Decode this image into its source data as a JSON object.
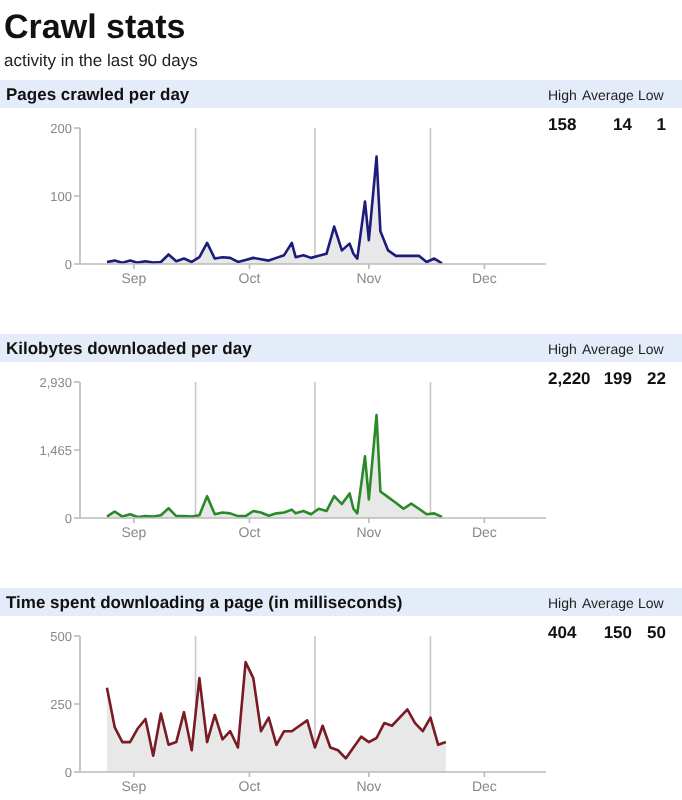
{
  "chart_data": [
    {
      "type": "other",
      "title": "Crawl stats",
      "subtitle": "activity in the last 90 days"
    },
    {
      "type": "area",
      "title": "Pages crawled per day",
      "annotations": [
        "High",
        "Average",
        "Low",
        "158",
        "14",
        "1"
      ],
      "xlim": [
        "--09-01",
        "--12-31"
      ],
      "xticks": [
        {
          "value": "--09-15",
          "label": "Sep"
        },
        {
          "value": "--10-15",
          "label": "Oct"
        },
        {
          "value": "--11-15",
          "label": "Nov"
        },
        {
          "value": "--12-15",
          "label": "Dec"
        }
      ],
      "ylim": [
        0,
        200
      ],
      "yticks": [
        0,
        100,
        200
      ],
      "ref_lines": [
        {
          "axis": "x",
          "value": "--10-01",
          "color": "#c8c8c8"
        },
        {
          "axis": "x",
          "value": "--11-01",
          "color": "#c8c8c8"
        },
        {
          "axis": "x",
          "value": "--12-01",
          "color": "#c8c8c8"
        }
      ],
      "series": [
        {
          "color": "#1c1c7a",
          "x": [
            "--09-08",
            "--09-10",
            "--09-12",
            "--09-14",
            "--09-16",
            "--09-18",
            "--09-20",
            "--09-22",
            "--09-24",
            "--09-26",
            "--09-28",
            "--09-30",
            "--10-02",
            "--10-04",
            "--10-06",
            "--10-08",
            "--10-10",
            "--10-12",
            "--10-14",
            "--10-16",
            "--10-18",
            "--10-20",
            "--10-22",
            "--10-24",
            "--10-26",
            "--10-27",
            "--10-29",
            "--10-31",
            "--11-02",
            "--11-04",
            "--11-06",
            "--11-08",
            "--11-10",
            "--11-11",
            "--11-12",
            "--11-14",
            "--11-15",
            "--11-17",
            "--11-18",
            "--11-20",
            "--11-22",
            "--11-24",
            "--11-26",
            "--11-28",
            "--11-30",
            "--12-02",
            "--12-04"
          ],
          "values": [
            3,
            5,
            2,
            5,
            2,
            4,
            2,
            3,
            14,
            4,
            8,
            3,
            10,
            31,
            8,
            10,
            9,
            3,
            6,
            9,
            7,
            5,
            9,
            13,
            31,
            10,
            13,
            9,
            12,
            15,
            55,
            20,
            30,
            15,
            8,
            92,
            35,
            158,
            48,
            20,
            12,
            12,
            12,
            12,
            3,
            8,
            1
          ]
        }
      ]
    },
    {
      "type": "area",
      "title": "Kilobytes downloaded per day",
      "annotations": [
        "High",
        "Average",
        "Low",
        "2,220",
        "199",
        "22"
      ],
      "xlim": [
        "--09-01",
        "--12-31"
      ],
      "xticks": [
        {
          "value": "--09-15",
          "label": "Sep"
        },
        {
          "value": "--10-15",
          "label": "Oct"
        },
        {
          "value": "--11-15",
          "label": "Nov"
        },
        {
          "value": "--12-15",
          "label": "Dec"
        }
      ],
      "ylim": [
        0,
        2930
      ],
      "yticks": [
        0,
        {
          "value": 1465,
          "label": "1,465"
        },
        {
          "value": 2930,
          "label": "2,930"
        }
      ],
      "ref_lines": [
        {
          "axis": "x",
          "value": "--10-01",
          "color": "#c8c8c8"
        },
        {
          "axis": "x",
          "value": "--11-01",
          "color": "#c8c8c8"
        },
        {
          "axis": "x",
          "value": "--12-01",
          "color": "#c8c8c8"
        }
      ],
      "series": [
        {
          "color": "#2a8a2a",
          "x": [
            "--09-08",
            "--09-10",
            "--09-12",
            "--09-14",
            "--09-16",
            "--09-18",
            "--09-20",
            "--09-22",
            "--09-24",
            "--09-26",
            "--09-28",
            "--09-30",
            "--10-02",
            "--10-04",
            "--10-06",
            "--10-08",
            "--10-10",
            "--10-12",
            "--10-14",
            "--10-16",
            "--10-18",
            "--10-20",
            "--10-22",
            "--10-24",
            "--10-26",
            "--10-27",
            "--10-29",
            "--10-31",
            "--11-02",
            "--11-04",
            "--11-06",
            "--11-08",
            "--11-10",
            "--11-11",
            "--11-12",
            "--11-14",
            "--11-15",
            "--11-17",
            "--11-18",
            "--11-20",
            "--11-22",
            "--11-24",
            "--11-26",
            "--11-28",
            "--11-30",
            "--12-02",
            "--12-04"
          ],
          "values": [
            30,
            140,
            30,
            80,
            20,
            40,
            30,
            60,
            210,
            40,
            40,
            30,
            60,
            470,
            80,
            120,
            100,
            40,
            40,
            150,
            120,
            50,
            100,
            120,
            180,
            100,
            150,
            80,
            200,
            150,
            470,
            300,
            530,
            200,
            100,
            1330,
            400,
            2220,
            570,
            450,
            330,
            200,
            310,
            200,
            80,
            100,
            22
          ]
        }
      ]
    },
    {
      "type": "area",
      "title": "Time spent downloading a page (in milliseconds)",
      "annotations": [
        "High",
        "Average",
        "Low",
        "404",
        "150",
        "50"
      ],
      "xlim": [
        "--09-01",
        "--12-31"
      ],
      "xticks": [
        {
          "value": "--09-15",
          "label": "Sep"
        },
        {
          "value": "--10-15",
          "label": "Oct"
        },
        {
          "value": "--11-15",
          "label": "Nov"
        },
        {
          "value": "--12-15",
          "label": "Dec"
        }
      ],
      "ylim": [
        0,
        500
      ],
      "yticks": [
        0,
        250,
        500
      ],
      "ref_lines": [
        {
          "axis": "x",
          "value": "--10-01",
          "color": "#c8c8c8"
        },
        {
          "axis": "x",
          "value": "--11-01",
          "color": "#c8c8c8"
        },
        {
          "axis": "x",
          "value": "--12-01",
          "color": "#c8c8c8"
        }
      ],
      "series": [
        {
          "color": "#7a1a22",
          "x": [
            "--09-08",
            "--09-10",
            "--09-12",
            "--09-14",
            "--09-16",
            "--09-18",
            "--09-20",
            "--09-22",
            "--09-24",
            "--09-26",
            "--09-28",
            "--09-30",
            "--10-02",
            "--10-04",
            "--10-06",
            "--10-08",
            "--10-10",
            "--10-12",
            "--10-14",
            "--10-16",
            "--10-18",
            "--10-20",
            "--10-22",
            "--10-24",
            "--10-26",
            "--10-28",
            "--10-30",
            "--11-01",
            "--11-03",
            "--11-05",
            "--11-07",
            "--11-09",
            "--11-11",
            "--11-13",
            "--11-15",
            "--11-17",
            "--11-19",
            "--11-21",
            "--11-23",
            "--11-25",
            "--11-27",
            "--11-29",
            "--12-01",
            "--12-03",
            "--12-05"
          ],
          "values": [
            310,
            165,
            110,
            110,
            160,
            195,
            60,
            215,
            100,
            110,
            220,
            80,
            345,
            110,
            210,
            120,
            150,
            90,
            404,
            345,
            150,
            200,
            100,
            150,
            150,
            170,
            190,
            90,
            170,
            90,
            80,
            50,
            90,
            130,
            110,
            125,
            180,
            170,
            200,
            230,
            180,
            150,
            200,
            100,
            110
          ]
        }
      ]
    }
  ]
}
